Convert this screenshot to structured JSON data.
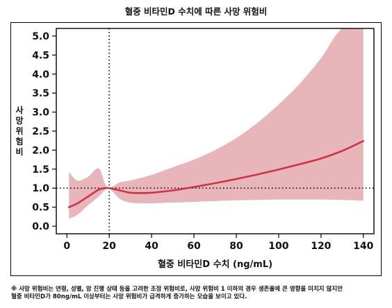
{
  "page": {
    "title": "혈중 비타민D 수치에 따른 사망 위험비",
    "footnote": [
      "※ 사망 위험비는 연령, 성별, 암 진행 상태 등을 고려한 조정 위험비로, 사망 위험비 1 이하의 경우 생존율에 큰 영향을 미치지 않지만",
      "혈중 비타민D가 80ng/mL 이상부터는 사망 위험비가 급격하게 증가하는 모습을 보이고 있다."
    ]
  },
  "chart_data": {
    "type": "line",
    "xlabel": "혈중 비타민D 수치 (ng/mL)",
    "ylabel": "사망 위험비",
    "xlim": [
      -5,
      145
    ],
    "ylim": [
      -0.2,
      5.2
    ],
    "x_ticks": [
      0,
      20,
      40,
      60,
      80,
      100,
      120,
      140
    ],
    "y_ticks": [
      0.0,
      0.5,
      1.0,
      1.5,
      2.0,
      2.5,
      3.0,
      3.5,
      4.0,
      4.5,
      5.0
    ],
    "reference_lines": {
      "vertical_x": 20,
      "horizontal_y": 1.0
    },
    "colors": {
      "line": "#cc3344",
      "band": "#e8b6ba",
      "reference": "#000000"
    },
    "series": [
      {
        "x": [
          1,
          5,
          10,
          15,
          18,
          20,
          25,
          30,
          35,
          40,
          50,
          60,
          70,
          80,
          90,
          100,
          110,
          120,
          130,
          140
        ],
        "y": [
          0.5,
          0.6,
          0.78,
          0.96,
          1.0,
          1.0,
          0.94,
          0.88,
          0.87,
          0.88,
          0.94,
          1.03,
          1.13,
          1.24,
          1.36,
          1.49,
          1.63,
          1.78,
          1.98,
          2.24
        ],
        "lower": [
          0.2,
          0.3,
          0.55,
          0.78,
          0.95,
          1.0,
          0.72,
          0.62,
          0.6,
          0.6,
          0.62,
          0.64,
          0.66,
          0.68,
          0.69,
          0.7,
          0.7,
          0.7,
          0.69,
          0.67
        ],
        "upper": [
          1.42,
          1.2,
          1.3,
          1.52,
          1.12,
          1.0,
          1.15,
          1.2,
          1.27,
          1.35,
          1.55,
          1.75,
          2.0,
          2.32,
          2.72,
          3.2,
          3.75,
          4.42,
          5.2,
          5.2
        ]
      }
    ]
  }
}
